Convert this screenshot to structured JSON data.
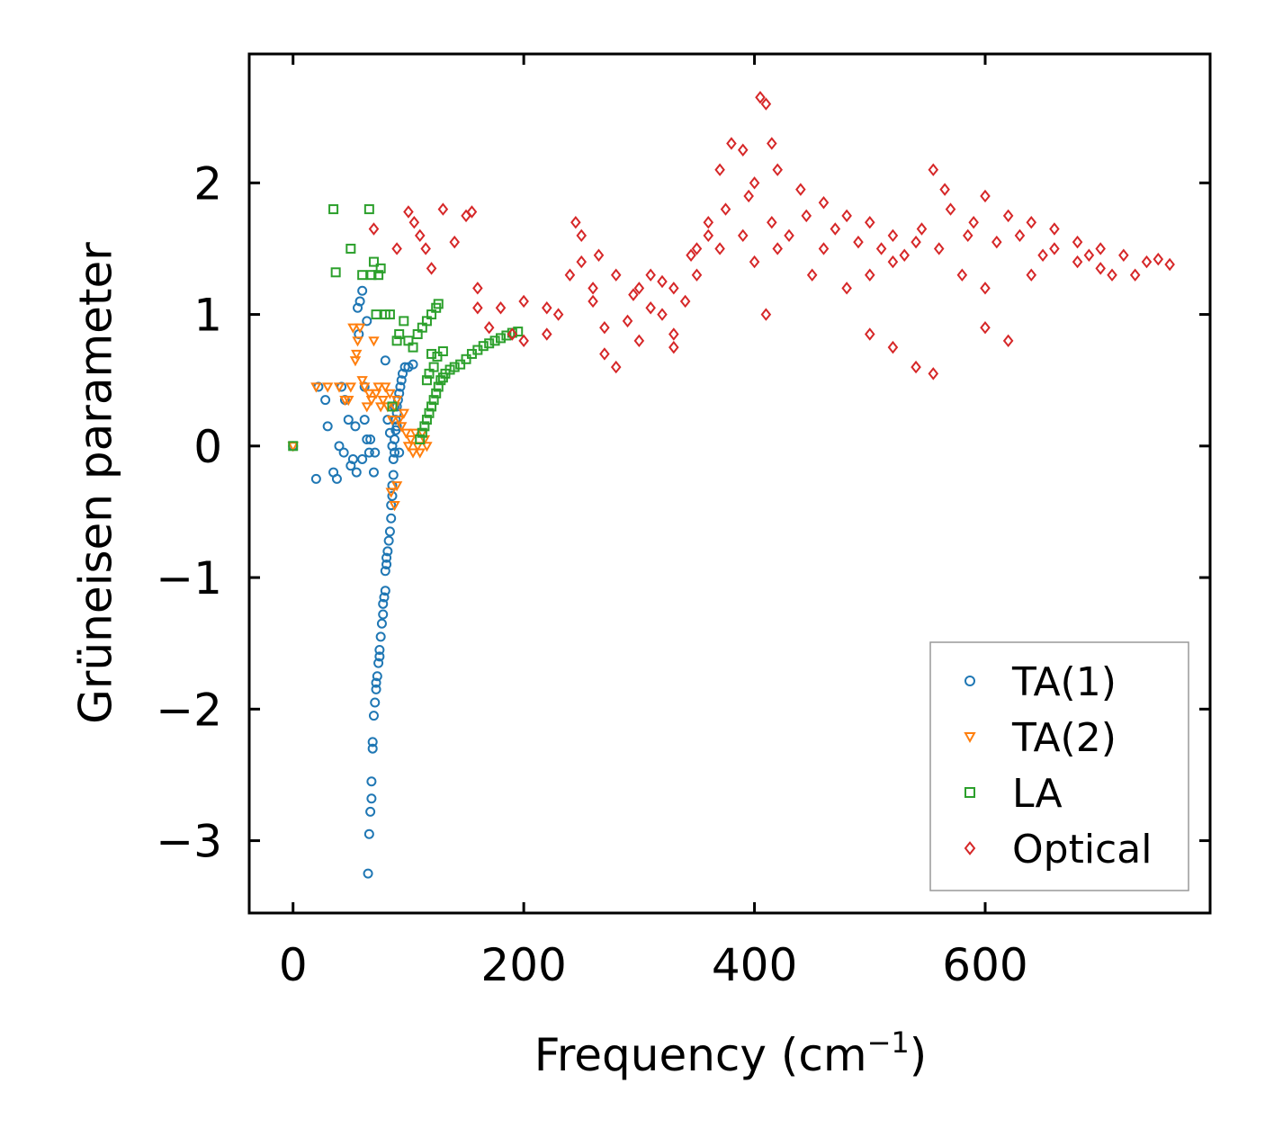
{
  "chart_data": {
    "type": "scatter",
    "title": "",
    "xlabel": "Frequency (cm",
    "xlabel_sup": "−1",
    "xlabel_close": ")",
    "ylabel": "Grüneisen parameter",
    "xlim": [
      -38,
      795
    ],
    "ylim": [
      -3.55,
      2.98
    ],
    "xticks": [
      0,
      200,
      400,
      600
    ],
    "xtick_labels": [
      "0",
      "200",
      "400",
      "600"
    ],
    "yticks": [
      -3,
      -2,
      -1,
      0,
      1,
      2
    ],
    "ytick_labels": [
      "−3",
      "−2",
      "−1",
      "0",
      "1",
      "2"
    ],
    "grid": false,
    "legend_position": "lower-right",
    "series": [
      {
        "name": "TA(1)",
        "marker": "circle",
        "color": "#1f77b4",
        "points": [
          [
            0,
            0
          ],
          [
            20,
            -0.25
          ],
          [
            22,
            0.45
          ],
          [
            28,
            0.35
          ],
          [
            30,
            0.15
          ],
          [
            35,
            -0.2
          ],
          [
            38,
            -0.25
          ],
          [
            40,
            0
          ],
          [
            42,
            0.45
          ],
          [
            44,
            -0.05
          ],
          [
            45,
            0.35
          ],
          [
            48,
            0.2
          ],
          [
            50,
            -0.15
          ],
          [
            52,
            -0.1
          ],
          [
            54,
            0.15
          ],
          [
            55,
            -0.2
          ],
          [
            56,
            1.05
          ],
          [
            57,
            0.85
          ],
          [
            58,
            1.1
          ],
          [
            60,
            -0.1
          ],
          [
            60,
            1.18
          ],
          [
            62,
            0.45
          ],
          [
            62,
            0.2
          ],
          [
            64,
            0.95
          ],
          [
            64,
            0.05
          ],
          [
            65,
            -3.25
          ],
          [
            66,
            -2.95
          ],
          [
            66,
            -0.05
          ],
          [
            67,
            -2.78
          ],
          [
            67,
            0.05
          ],
          [
            68,
            -2.68
          ],
          [
            68,
            -2.55
          ],
          [
            69,
            -2.3
          ],
          [
            69,
            -2.25
          ],
          [
            70,
            -2.05
          ],
          [
            70,
            -0.2
          ],
          [
            71,
            -1.95
          ],
          [
            71,
            -0.05
          ],
          [
            72,
            -1.85
          ],
          [
            72,
            -1.8
          ],
          [
            73,
            -1.75
          ],
          [
            74,
            -1.65
          ],
          [
            75,
            -1.6
          ],
          [
            75,
            -1.55
          ],
          [
            76,
            -1.45
          ],
          [
            77,
            -1.35
          ],
          [
            78,
            -1.28
          ],
          [
            78,
            -1.2
          ],
          [
            79,
            -1.15
          ],
          [
            80,
            -1.1
          ],
          [
            80,
            -0.95
          ],
          [
            81,
            -0.9
          ],
          [
            81,
            -0.85
          ],
          [
            82,
            -0.8
          ],
          [
            83,
            -0.72
          ],
          [
            84,
            -0.65
          ],
          [
            85,
            -0.55
          ],
          [
            85,
            -0.45
          ],
          [
            86,
            -0.38
          ],
          [
            86,
            -0.3
          ],
          [
            87,
            -0.22
          ],
          [
            87,
            -0.1
          ],
          [
            88,
            -0.05
          ],
          [
            88,
            0.05
          ],
          [
            89,
            0.12
          ],
          [
            89,
            0.2
          ],
          [
            90,
            0.25
          ],
          [
            90,
            0.3
          ],
          [
            91,
            0.35
          ],
          [
            92,
            0.4
          ],
          [
            93,
            0.45
          ],
          [
            94,
            0.5
          ],
          [
            95,
            0.55
          ],
          [
            97,
            0.6
          ],
          [
            100,
            0.6
          ],
          [
            104,
            0.62
          ],
          [
            80,
            0.65
          ],
          [
            82,
            0.2
          ],
          [
            84,
            0.1
          ],
          [
            86,
            0.0
          ],
          [
            88,
            0.3
          ],
          [
            90,
            0.15
          ],
          [
            92,
            -0.05
          ]
        ]
      },
      {
        "name": "TA(2)",
        "marker": "triangle-down",
        "color": "#ff7f0e",
        "points": [
          [
            0,
            0
          ],
          [
            20,
            0.45
          ],
          [
            30,
            0.45
          ],
          [
            40,
            0.45
          ],
          [
            45,
            0.35
          ],
          [
            48,
            0.35
          ],
          [
            50,
            0.45
          ],
          [
            52,
            0.9
          ],
          [
            54,
            0.65
          ],
          [
            55,
            0.7
          ],
          [
            56,
            0.8
          ],
          [
            58,
            0.9
          ],
          [
            60,
            0.5
          ],
          [
            62,
            0.45
          ],
          [
            64,
            0.3
          ],
          [
            66,
            0.4
          ],
          [
            68,
            0.35
          ],
          [
            70,
            0.8
          ],
          [
            72,
            0.4
          ],
          [
            74,
            0.45
          ],
          [
            76,
            0.3
          ],
          [
            78,
            0.35
          ],
          [
            80,
            0.45
          ],
          [
            82,
            0.3
          ],
          [
            84,
            0.4
          ],
          [
            86,
            0.2
          ],
          [
            88,
            0.3
          ],
          [
            90,
            0.35
          ],
          [
            92,
            0.2
          ],
          [
            94,
            0.15
          ],
          [
            96,
            0.25
          ],
          [
            98,
            0.1
          ],
          [
            100,
            0.0
          ],
          [
            102,
            0.05
          ],
          [
            104,
            -0.05
          ],
          [
            106,
            0.1
          ],
          [
            108,
            0.0
          ],
          [
            110,
            -0.05
          ],
          [
            112,
            0.1
          ],
          [
            114,
            0.05
          ],
          [
            116,
            0.0
          ],
          [
            85,
            -0.35
          ],
          [
            88,
            -0.45
          ],
          [
            90,
            -0.3
          ]
        ]
      },
      {
        "name": "LA",
        "marker": "square",
        "color": "#2ca02c",
        "points": [
          [
            0,
            0
          ],
          [
            35,
            1.8
          ],
          [
            37,
            1.32
          ],
          [
            50,
            1.5
          ],
          [
            60,
            1.3
          ],
          [
            66,
            1.8
          ],
          [
            68,
            1.3
          ],
          [
            70,
            1.4
          ],
          [
            72,
            1.0
          ],
          [
            74,
            1.3
          ],
          [
            76,
            1.35
          ],
          [
            80,
            1.0
          ],
          [
            84,
            1.0
          ],
          [
            86,
            0.3
          ],
          [
            90,
            0.8
          ],
          [
            92,
            0.85
          ],
          [
            96,
            0.95
          ],
          [
            100,
            0.8
          ],
          [
            104,
            0.75
          ],
          [
            108,
            0.85
          ],
          [
            112,
            0.9
          ],
          [
            116,
            0.95
          ],
          [
            120,
            1.0
          ],
          [
            124,
            1.05
          ],
          [
            126,
            1.08
          ],
          [
            110,
            0.05
          ],
          [
            112,
            0.1
          ],
          [
            114,
            0.15
          ],
          [
            116,
            0.2
          ],
          [
            118,
            0.25
          ],
          [
            120,
            0.3
          ],
          [
            122,
            0.35
          ],
          [
            124,
            0.4
          ],
          [
            126,
            0.45
          ],
          [
            128,
            0.5
          ],
          [
            130,
            0.52
          ],
          [
            132,
            0.55
          ],
          [
            136,
            0.58
          ],
          [
            140,
            0.6
          ],
          [
            145,
            0.62
          ],
          [
            150,
            0.66
          ],
          [
            155,
            0.7
          ],
          [
            160,
            0.73
          ],
          [
            165,
            0.76
          ],
          [
            170,
            0.78
          ],
          [
            175,
            0.8
          ],
          [
            180,
            0.82
          ],
          [
            185,
            0.84
          ],
          [
            190,
            0.86
          ],
          [
            195,
            0.87
          ],
          [
            120,
            0.7
          ],
          [
            125,
            0.68
          ],
          [
            130,
            0.72
          ],
          [
            118,
            0.55
          ],
          [
            122,
            0.6
          ],
          [
            116,
            0.5
          ]
        ]
      },
      {
        "name": "Optical",
        "marker": "diamond",
        "color": "#d62728",
        "points": [
          [
            70,
            1.65
          ],
          [
            90,
            1.5
          ],
          [
            100,
            1.78
          ],
          [
            105,
            1.7
          ],
          [
            110,
            1.6
          ],
          [
            115,
            1.5
          ],
          [
            130,
            1.8
          ],
          [
            150,
            1.75
          ],
          [
            155,
            1.78
          ],
          [
            120,
            1.35
          ],
          [
            140,
            1.55
          ],
          [
            160,
            1.2
          ],
          [
            180,
            1.05
          ],
          [
            200,
            1.1
          ],
          [
            220,
            1.05
          ],
          [
            240,
            1.3
          ],
          [
            250,
            1.4
          ],
          [
            260,
            1.2
          ],
          [
            270,
            0.9
          ],
          [
            280,
            0.6
          ],
          [
            300,
            1.2
          ],
          [
            310,
            1.3
          ],
          [
            320,
            1.0
          ],
          [
            330,
            0.85
          ],
          [
            340,
            1.1
          ],
          [
            350,
            1.5
          ],
          [
            360,
            1.7
          ],
          [
            370,
            2.1
          ],
          [
            380,
            2.3
          ],
          [
            390,
            2.25
          ],
          [
            400,
            2.0
          ],
          [
            405,
            2.65
          ],
          [
            410,
            2.6
          ],
          [
            415,
            2.3
          ],
          [
            420,
            2.1
          ],
          [
            440,
            1.95
          ],
          [
            460,
            1.85
          ],
          [
            480,
            1.75
          ],
          [
            500,
            1.7
          ],
          [
            520,
            1.6
          ],
          [
            540,
            1.55
          ],
          [
            555,
            2.1
          ],
          [
            570,
            1.8
          ],
          [
            590,
            1.7
          ],
          [
            600,
            1.9
          ],
          [
            620,
            1.75
          ],
          [
            640,
            1.7
          ],
          [
            660,
            1.65
          ],
          [
            680,
            1.55
          ],
          [
            700,
            1.5
          ],
          [
            720,
            1.45
          ],
          [
            740,
            1.4
          ],
          [
            760,
            1.38
          ],
          [
            410,
            1.0
          ],
          [
            500,
            0.85
          ],
          [
            520,
            0.75
          ],
          [
            540,
            0.6
          ],
          [
            555,
            0.55
          ],
          [
            620,
            0.8
          ],
          [
            600,
            0.9
          ],
          [
            300,
            0.8
          ],
          [
            330,
            0.75
          ],
          [
            450,
            1.3
          ],
          [
            480,
            1.2
          ],
          [
            500,
            1.3
          ],
          [
            560,
            1.5
          ],
          [
            640,
            1.3
          ],
          [
            700,
            1.35
          ],
          [
            730,
            1.3
          ],
          [
            200,
            0.8
          ],
          [
            220,
            0.85
          ],
          [
            230,
            1.0
          ],
          [
            260,
            1.1
          ],
          [
            270,
            0.7
          ],
          [
            290,
            0.95
          ],
          [
            310,
            1.05
          ],
          [
            330,
            1.2
          ],
          [
            350,
            1.3
          ],
          [
            370,
            1.5
          ],
          [
            390,
            1.6
          ],
          [
            400,
            1.4
          ],
          [
            420,
            1.5
          ],
          [
            430,
            1.6
          ],
          [
            460,
            1.5
          ],
          [
            520,
            1.4
          ],
          [
            580,
            1.3
          ],
          [
            600,
            1.2
          ],
          [
            650,
            1.45
          ],
          [
            680,
            1.4
          ],
          [
            710,
            1.3
          ],
          [
            160,
            1.05
          ],
          [
            170,
            0.9
          ],
          [
            190,
            0.85
          ],
          [
            245,
            1.7
          ],
          [
            250,
            1.6
          ],
          [
            265,
            1.45
          ],
          [
            280,
            1.3
          ],
          [
            295,
            1.15
          ],
          [
            320,
            1.25
          ],
          [
            345,
            1.45
          ],
          [
            360,
            1.6
          ],
          [
            375,
            1.8
          ],
          [
            395,
            1.9
          ],
          [
            415,
            1.7
          ],
          [
            445,
            1.75
          ],
          [
            470,
            1.65
          ],
          [
            490,
            1.55
          ],
          [
            510,
            1.5
          ],
          [
            530,
            1.45
          ],
          [
            545,
            1.65
          ],
          [
            565,
            1.95
          ],
          [
            585,
            1.6
          ],
          [
            610,
            1.55
          ],
          [
            630,
            1.6
          ],
          [
            660,
            1.5
          ],
          [
            690,
            1.45
          ],
          [
            750,
            1.42
          ]
        ]
      }
    ]
  }
}
